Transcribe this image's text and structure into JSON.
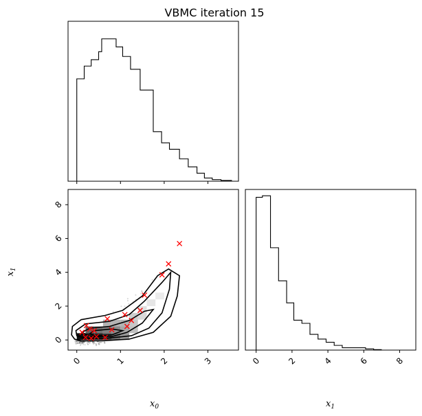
{
  "chart_data": {
    "type": "corner",
    "title": "VBMC iteration 15",
    "panels": [
      {
        "id": "hist_x0",
        "type": "step-histogram",
        "x_range": [
          -0.2,
          3.7
        ],
        "x_ticks": [
          0,
          1,
          2,
          3
        ],
        "bins": [
          {
            "x0": 0.0,
            "x1": 0.17,
            "y": 0.64
          },
          {
            "x0": 0.17,
            "x1": 0.33,
            "y": 0.72
          },
          {
            "x0": 0.33,
            "x1": 0.5,
            "y": 0.76
          },
          {
            "x0": 0.5,
            "x1": 0.57,
            "y": 0.81
          },
          {
            "x0": 0.57,
            "x1": 0.9,
            "y": 0.89
          },
          {
            "x0": 0.9,
            "x1": 1.05,
            "y": 0.84
          },
          {
            "x0": 1.05,
            "x1": 1.23,
            "y": 0.78
          },
          {
            "x0": 1.23,
            "x1": 1.45,
            "y": 0.7
          },
          {
            "x0": 1.45,
            "x1": 1.75,
            "y": 0.57
          },
          {
            "x0": 1.75,
            "x1": 1.94,
            "y": 0.31
          },
          {
            "x0": 1.94,
            "x1": 2.12,
            "y": 0.24
          },
          {
            "x0": 2.12,
            "x1": 2.35,
            "y": 0.2
          },
          {
            "x0": 2.35,
            "x1": 2.55,
            "y": 0.14
          },
          {
            "x0": 2.55,
            "x1": 2.75,
            "y": 0.09
          },
          {
            "x0": 2.75,
            "x1": 2.92,
            "y": 0.05
          },
          {
            "x0": 2.92,
            "x1": 3.1,
            "y": 0.02
          },
          {
            "x0": 3.1,
            "x1": 3.3,
            "y": 0.01
          },
          {
            "x0": 3.3,
            "x1": 3.55,
            "y": 0.005
          }
        ]
      },
      {
        "id": "joint",
        "type": "scatter-density",
        "x_range": [
          -0.2,
          3.7
        ],
        "y_range": [
          -0.6,
          8.9
        ],
        "x_ticks": [
          0,
          1,
          2,
          3
        ],
        "y_ticks": [
          0,
          2,
          4,
          6,
          8
        ],
        "xlabel": "x_0",
        "ylabel": "x_1",
        "cloud_curve": [
          [
            0.0,
            0.1
          ],
          [
            0.5,
            0.35
          ],
          [
            1.0,
            1.1
          ],
          [
            1.5,
            2.3
          ],
          [
            2.0,
            3.9
          ],
          [
            2.5,
            5.8
          ],
          [
            3.0,
            7.4
          ]
        ],
        "contours": [
          [
            [
              0.1,
              -0.05
            ],
            [
              0.6,
              -0.05
            ],
            [
              1.2,
              0.05
            ],
            [
              1.75,
              0.45
            ],
            [
              2.15,
              1.4
            ],
            [
              2.3,
              2.6
            ],
            [
              2.35,
              3.8
            ],
            [
              2.1,
              4.2
            ],
            [
              1.85,
              3.8
            ],
            [
              1.5,
              2.6
            ],
            [
              1.05,
              1.75
            ],
            [
              0.65,
              1.45
            ],
            [
              0.1,
              1.2
            ],
            [
              -0.1,
              0.8
            ],
            [
              -0.12,
              0.3
            ],
            [
              -0.05,
              0.05
            ]
          ],
          [
            [
              0.2,
              0.1
            ],
            [
              0.7,
              0.1
            ],
            [
              1.25,
              0.25
            ],
            [
              1.65,
              0.7
            ],
            [
              1.95,
              1.6
            ],
            [
              2.12,
              3.0
            ],
            [
              2.15,
              4.0
            ],
            [
              1.95,
              3.4
            ],
            [
              1.55,
              2.3
            ],
            [
              1.2,
              1.5
            ],
            [
              0.75,
              1.1
            ],
            [
              0.2,
              0.95
            ],
            [
              -0.02,
              0.55
            ],
            [
              0.0,
              0.25
            ]
          ],
          [
            [
              0.3,
              0.2
            ],
            [
              0.8,
              0.2
            ],
            [
              1.15,
              0.45
            ],
            [
              1.5,
              1.0
            ],
            [
              1.75,
              1.8
            ],
            [
              1.55,
              1.7
            ],
            [
              1.2,
              1.15
            ],
            [
              0.75,
              0.8
            ],
            [
              0.3,
              0.7
            ],
            [
              0.12,
              0.45
            ]
          ],
          [
            [
              0.4,
              0.25
            ],
            [
              0.8,
              0.3
            ],
            [
              1.05,
              0.55
            ],
            [
              0.8,
              0.65
            ],
            [
              0.4,
              0.55
            ],
            [
              0.3,
              0.38
            ]
          ]
        ],
        "density_cells": [
          {
            "x": 0.0,
            "y": 0.0,
            "v": 0.95
          },
          {
            "x": 0.2,
            "y": 0.0,
            "v": 0.9
          },
          {
            "x": 0.4,
            "y": 0.0,
            "v": 0.85
          },
          {
            "x": 0.6,
            "y": 0.0,
            "v": 0.7
          },
          {
            "x": 0.8,
            "y": 0.0,
            "v": 0.55
          },
          {
            "x": 1.0,
            "y": 0.0,
            "v": 0.4
          },
          {
            "x": 0.2,
            "y": 0.4,
            "v": 0.6
          },
          {
            "x": 0.4,
            "y": 0.4,
            "v": 0.55
          },
          {
            "x": 0.6,
            "y": 0.4,
            "v": 0.5
          },
          {
            "x": 0.8,
            "y": 0.4,
            "v": 0.45
          },
          {
            "x": 1.0,
            "y": 0.4,
            "v": 0.35
          },
          {
            "x": 1.2,
            "y": 0.4,
            "v": 0.25
          },
          {
            "x": 0.6,
            "y": 0.8,
            "v": 0.3
          },
          {
            "x": 0.8,
            "y": 0.8,
            "v": 0.3
          },
          {
            "x": 1.0,
            "y": 0.8,
            "v": 0.3
          },
          {
            "x": 1.2,
            "y": 0.8,
            "v": 0.22
          },
          {
            "x": 1.2,
            "y": 1.2,
            "v": 0.2
          },
          {
            "x": 1.4,
            "y": 1.2,
            "v": 0.15
          },
          {
            "x": 1.4,
            "y": 1.6,
            "v": 0.12
          },
          {
            "x": 1.6,
            "y": 2.0,
            "v": 0.1
          },
          {
            "x": 1.8,
            "y": 2.4,
            "v": 0.08
          }
        ],
        "markers": [
          [
            0.12,
            0.45
          ],
          [
            0.2,
            0.15
          ],
          [
            0.22,
            0.85
          ],
          [
            0.3,
            0.65
          ],
          [
            0.33,
            0.1
          ],
          [
            0.4,
            0.55
          ],
          [
            0.45,
            0.2
          ],
          [
            0.65,
            0.15
          ],
          [
            0.7,
            1.25
          ],
          [
            0.8,
            0.6
          ],
          [
            1.1,
            1.5
          ],
          [
            1.15,
            0.8
          ],
          [
            1.25,
            1.15
          ],
          [
            1.45,
            1.75
          ],
          [
            1.55,
            2.65
          ],
          [
            1.95,
            3.85
          ],
          [
            2.1,
            4.5
          ],
          [
            2.35,
            5.7
          ]
        ],
        "marker_color": "#ff0000"
      },
      {
        "id": "hist_x1",
        "type": "step-histogram",
        "x_range": [
          -0.6,
          8.9
        ],
        "x_ticks": [
          0,
          2,
          4,
          6,
          8
        ],
        "xlabel": "x_1",
        "bins": [
          {
            "x0": 0.0,
            "x1": 0.35,
            "y": 0.97
          },
          {
            "x0": 0.35,
            "x1": 0.8,
            "y": 0.98
          },
          {
            "x0": 0.8,
            "x1": 1.25,
            "y": 0.65
          },
          {
            "x0": 1.25,
            "x1": 1.7,
            "y": 0.44
          },
          {
            "x0": 1.7,
            "x1": 2.1,
            "y": 0.3
          },
          {
            "x0": 2.1,
            "x1": 2.55,
            "y": 0.19
          },
          {
            "x0": 2.55,
            "x1": 3.0,
            "y": 0.17
          },
          {
            "x0": 3.0,
            "x1": 3.45,
            "y": 0.1
          },
          {
            "x0": 3.45,
            "x1": 3.9,
            "y": 0.07
          },
          {
            "x0": 3.9,
            "x1": 4.35,
            "y": 0.05
          },
          {
            "x0": 4.35,
            "x1": 4.8,
            "y": 0.03
          },
          {
            "x0": 4.8,
            "x1": 5.25,
            "y": 0.015
          },
          {
            "x0": 5.25,
            "x1": 6.1,
            "y": 0.015
          },
          {
            "x0": 6.1,
            "x1": 6.55,
            "y": 0.008
          },
          {
            "x0": 6.55,
            "x1": 7.0,
            "y": 0.003
          }
        ]
      }
    ]
  }
}
